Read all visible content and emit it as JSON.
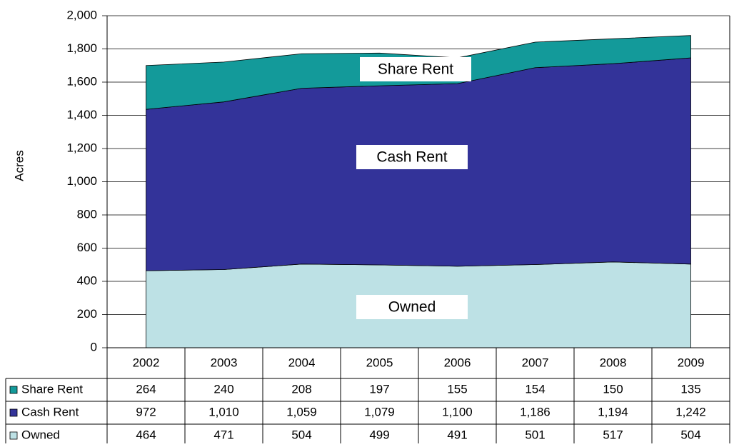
{
  "chart_data": {
    "type": "stacked_area",
    "y_axis_label": "Acres",
    "categories": [
      "2002",
      "2003",
      "2004",
      "2005",
      "2006",
      "2007",
      "2008",
      "2009"
    ],
    "series": [
      {
        "name": "Share Rent",
        "color": "#139a9a",
        "values": [
          264,
          240,
          208,
          197,
          155,
          154,
          150,
          135
        ]
      },
      {
        "name": "Cash Rent",
        "color": "#333399",
        "values": [
          972,
          1010,
          1059,
          1079,
          1100,
          1186,
          1194,
          1242
        ],
        "value_labels": [
          "972",
          "1,010",
          "1,059",
          "1,079",
          "1,100",
          "1,186",
          "1,194",
          "1,242"
        ]
      },
      {
        "name": "Owned",
        "color": "#bde1e5",
        "values": [
          464,
          471,
          504,
          499,
          491,
          501,
          517,
          504
        ]
      }
    ],
    "annotations": [
      "Share Rent",
      "Cash Rent",
      "Owned"
    ],
    "ylim": [
      0,
      2000
    ],
    "yticks": [
      0,
      200,
      400,
      600,
      800,
      {
        "value": 1000,
        "label": "1,000"
      },
      {
        "value": 1200,
        "label": "1,200"
      },
      {
        "value": 1400,
        "label": "1,400"
      },
      {
        "value": 1600,
        "label": "1,600"
      },
      {
        "value": 1800,
        "label": "1,800"
      },
      {
        "value": 2000,
        "label": "2,000"
      }
    ],
    "grid": true
  }
}
